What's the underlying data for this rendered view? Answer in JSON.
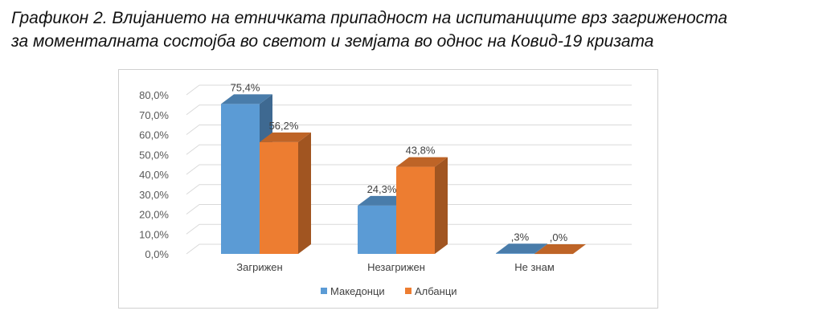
{
  "caption": {
    "line1": "Графикон 2. Влијанието на етничката припадност на испитаниците врз загриженоста",
    "line2": "за моменталната состојба во светот и земјата во однос на Ковид-19 кризата"
  },
  "chart_data": {
    "type": "bar",
    "title": "",
    "categories": [
      "Загрижен",
      "Незагрижен",
      "Не знам"
    ],
    "series": [
      {
        "name": "Македонци",
        "values": [
          75.4,
          24.3,
          0.3
        ],
        "labels": [
          "75,4%",
          "24,3%",
          ",3%"
        ],
        "color": "#5b9bd5"
      },
      {
        "name": "Албанци",
        "values": [
          56.2,
          43.8,
          0.0
        ],
        "labels": [
          "56,2%",
          "43,8%",
          ",0%"
        ],
        "color": "#ed7d31"
      }
    ],
    "ylim": [
      0,
      80
    ],
    "yticks": [
      "0,0%",
      "10,0%",
      "20,0%",
      "30,0%",
      "40,0%",
      "50,0%",
      "60,0%",
      "70,0%",
      "80,0%"
    ],
    "grid": true,
    "three_d": true,
    "legend_position": "bottom"
  }
}
